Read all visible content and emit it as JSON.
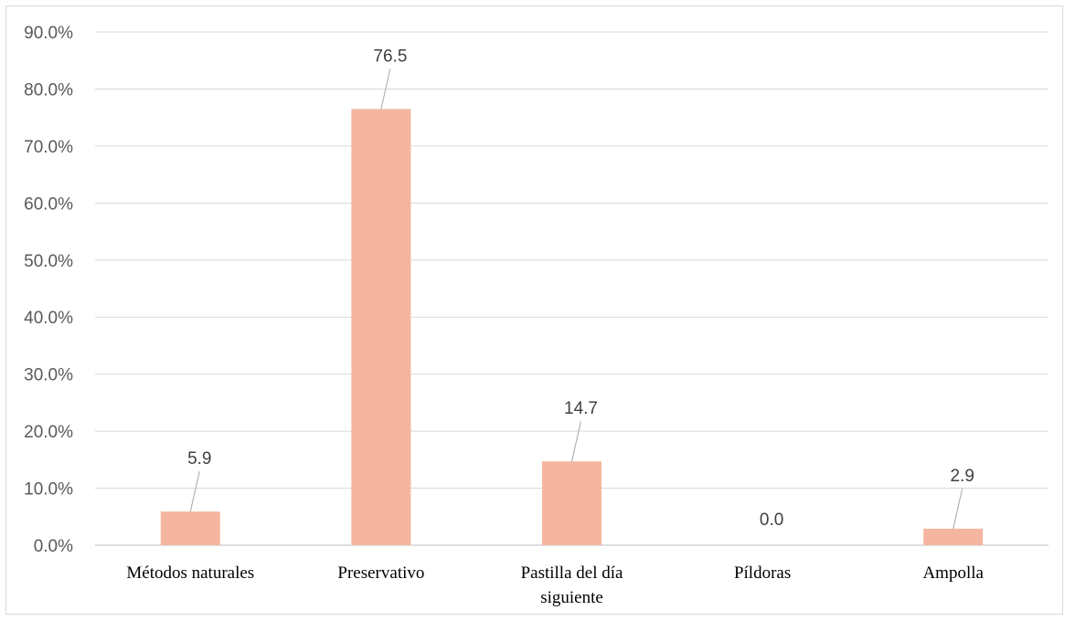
{
  "chart_data": {
    "type": "bar",
    "categories": [
      [
        "Métodos naturales"
      ],
      [
        "Preservativo"
      ],
      [
        "Pastilla del día",
        "siguiente"
      ],
      [
        "Píldoras"
      ],
      [
        "Ampolla"
      ]
    ],
    "values": [
      5.9,
      76.5,
      14.7,
      0.0,
      2.9
    ],
    "data_labels": [
      "5.9",
      "76.5",
      "14.7",
      "0.0",
      "2.9"
    ],
    "yticks": [
      "0.0%",
      "10.0%",
      "20.0%",
      "30.0%",
      "40.0%",
      "50.0%",
      "60.0%",
      "70.0%",
      "80.0%",
      "90.0%"
    ],
    "ylim": [
      0,
      90
    ],
    "title": "",
    "xlabel": "",
    "ylabel": "",
    "grid": true,
    "legend": "none",
    "colors": {
      "bar": "#f4b6a0",
      "grid": "#d9d9d9",
      "leader": "#a6a6a6"
    }
  }
}
